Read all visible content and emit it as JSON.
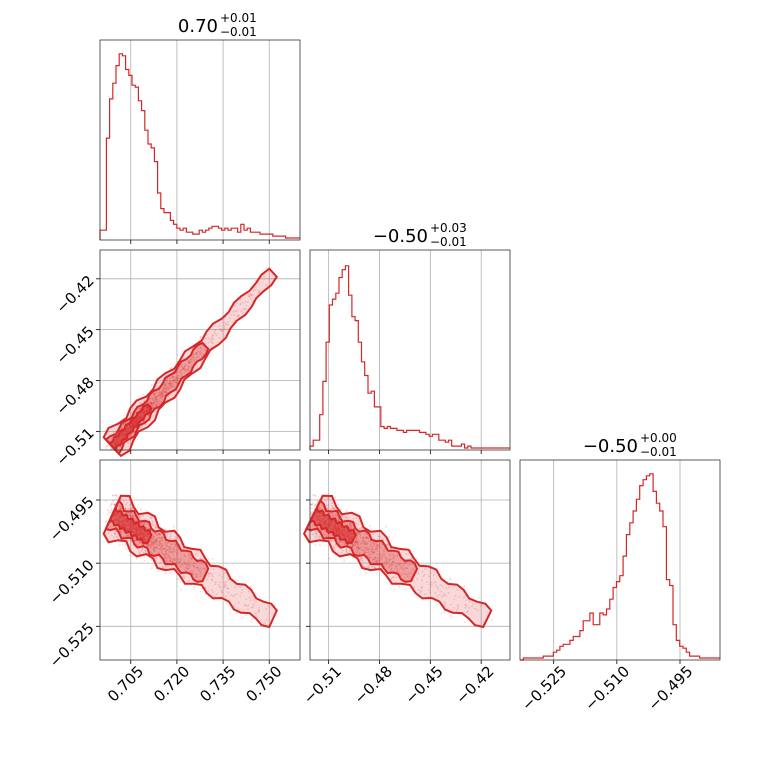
{
  "chart_data": {
    "type": "corner",
    "color": "#d62728",
    "grid": true,
    "params": [
      {
        "range": [
          0.695,
          0.76
        ],
        "ticks": [
          "0.705",
          "0.720",
          "0.735",
          "0.750"
        ],
        "title": {
          "value": "0.70",
          "plus": "+0.01",
          "minus": "−0.01"
        }
      },
      {
        "range": [
          -0.521,
          -0.403
        ],
        "ticks": [
          "−0.51",
          "−0.48",
          "−0.45",
          "−0.42"
        ],
        "title": {
          "value": "−0.50",
          "plus": "+0.03",
          "minus": "−0.01"
        }
      },
      {
        "range": [
          -0.533,
          -0.4855
        ],
        "ticks": [
          "−0.525",
          "−0.510",
          "−0.495"
        ],
        "title": {
          "value": "−0.50",
          "plus": "+0.00",
          "minus": "−0.01"
        }
      }
    ],
    "histograms": [
      {
        "param": 0,
        "bin_start": 0.695,
        "bin_width": 0.00104,
        "counts": [
          0.05,
          0.05,
          0.52,
          0.72,
          0.8,
          0.89,
          0.95,
          0.94,
          0.87,
          0.84,
          0.79,
          0.78,
          0.71,
          0.66,
          0.56,
          0.49,
          0.47,
          0.4,
          0.24,
          0.16,
          0.14,
          0.14,
          0.1,
          0.08,
          0.06,
          0.05,
          0.06,
          0.04,
          0.04,
          0.03,
          0.03,
          0.05,
          0.04,
          0.05,
          0.06,
          0.07,
          0.07,
          0.06,
          0.05,
          0.06,
          0.05,
          0.06,
          0.06,
          0.04,
          0.08,
          0.05,
          0.06,
          0.04,
          0.04,
          0.04,
          0.03,
          0.03,
          0.03,
          0.03,
          0.02,
          0.02,
          0.02,
          0.02,
          0.01,
          0.01,
          0.01,
          0.01,
          0.01
        ]
      },
      {
        "param": 1,
        "bin_start": -0.521,
        "bin_width": 0.0019,
        "counts": [
          0.02,
          0.05,
          0.05,
          0.18,
          0.35,
          0.55,
          0.74,
          0.77,
          0.8,
          0.88,
          0.92,
          0.94,
          0.79,
          0.68,
          0.66,
          0.55,
          0.45,
          0.38,
          0.29,
          0.3,
          0.22,
          0.22,
          0.12,
          0.11,
          0.12,
          0.11,
          0.11,
          0.1,
          0.1,
          0.09,
          0.1,
          0.1,
          0.1,
          0.1,
          0.09,
          0.09,
          0.08,
          0.07,
          0.08,
          0.08,
          0.05,
          0.05,
          0.04,
          0.05,
          0.02,
          0.02,
          0.02,
          0.03,
          0.01,
          0.02,
          0.01,
          0.01,
          0.01,
          0.01,
          0.01,
          0.01,
          0.01,
          0.01,
          0.01,
          0.01,
          0.01,
          0.01
        ]
      },
      {
        "param": 2,
        "bin_start": -0.533,
        "bin_width": 0.00079,
        "counts": [
          0.0,
          0.01,
          0.01,
          0.01,
          0.01,
          0.01,
          0.01,
          0.02,
          0.02,
          0.02,
          0.04,
          0.05,
          0.07,
          0.08,
          0.08,
          0.1,
          0.12,
          0.12,
          0.15,
          0.2,
          0.2,
          0.24,
          0.18,
          0.18,
          0.24,
          0.23,
          0.26,
          0.31,
          0.37,
          0.4,
          0.43,
          0.53,
          0.64,
          0.7,
          0.76,
          0.82,
          0.89,
          0.92,
          0.94,
          0.95,
          0.86,
          0.8,
          0.76,
          0.68,
          0.41,
          0.38,
          0.18,
          0.1,
          0.07,
          0.06,
          0.04,
          0.02,
          0.02,
          0.02,
          0.01,
          0.01,
          0.01,
          0.01,
          0.01,
          0.01
        ]
      }
    ]
  }
}
